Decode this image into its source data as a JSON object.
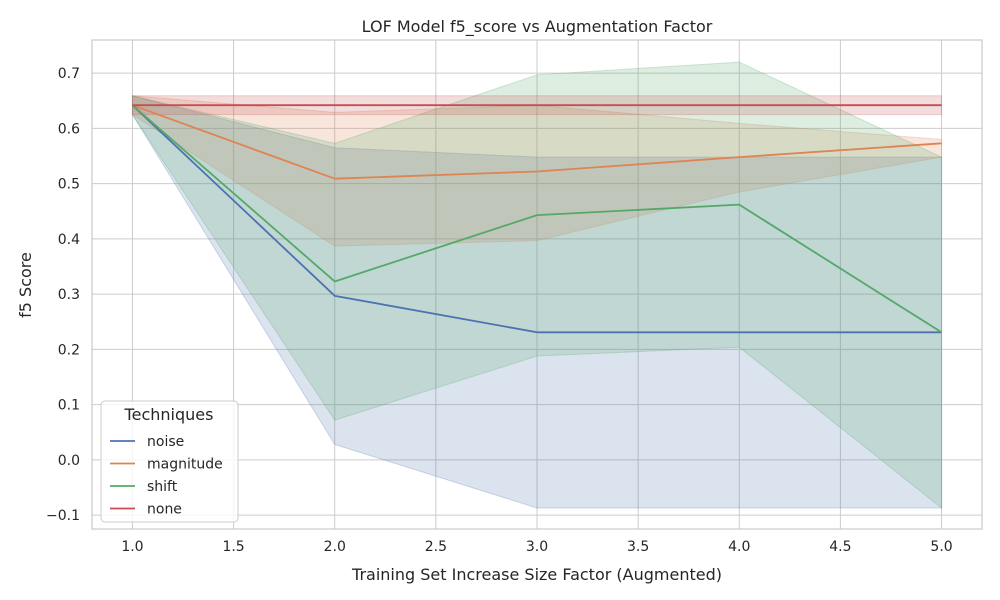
{
  "chart_data": {
    "type": "line",
    "title": "LOF Model f5_score vs Augmentation Factor",
    "xlabel": "Training Set Increase Size Factor (Augmented)",
    "ylabel": "f5 Score",
    "xlim": [
      0.8,
      5.2
    ],
    "ylim": [
      -0.125,
      0.76
    ],
    "xticks": [
      1.0,
      1.5,
      2.0,
      2.5,
      3.0,
      3.5,
      4.0,
      4.5,
      5.0
    ],
    "xtick_labels": [
      "1.0",
      "1.5",
      "2.0",
      "2.5",
      "3.0",
      "3.5",
      "4.0",
      "4.5",
      "5.0"
    ],
    "yticks": [
      -0.1,
      0.0,
      0.1,
      0.2,
      0.3,
      0.4,
      0.5,
      0.6,
      0.7
    ],
    "ytick_labels": [
      "−0.1",
      "0.0",
      "0.1",
      "0.2",
      "0.3",
      "0.4",
      "0.5",
      "0.6",
      "0.7"
    ],
    "grid": true,
    "legend": {
      "title": "Techniques",
      "placement": "lower-left"
    },
    "x": [
      1,
      2,
      3,
      4,
      5
    ],
    "series": [
      {
        "name": "noise",
        "color": "#4c72b0",
        "values": [
          0.642,
          0.297,
          0.231,
          0.231,
          0.231
        ],
        "lower": [
          0.625,
          0.028,
          -0.087,
          -0.087,
          -0.087
        ],
        "upper": [
          0.659,
          0.565,
          0.548,
          0.548,
          0.548
        ]
      },
      {
        "name": "magnitude",
        "color": "#dd8452",
        "values": [
          0.642,
          0.509,
          0.522,
          0.548,
          0.573
        ],
        "lower": [
          0.625,
          0.387,
          0.397,
          0.485,
          0.548
        ],
        "upper": [
          0.659,
          0.629,
          0.642,
          0.609,
          0.58
        ]
      },
      {
        "name": "shift",
        "color": "#55a868",
        "values": [
          0.642,
          0.323,
          0.443,
          0.462,
          0.231
        ],
        "lower": [
          0.625,
          0.072,
          0.188,
          0.204,
          -0.087
        ],
        "upper": [
          0.659,
          0.573,
          0.697,
          0.72,
          0.548
        ]
      },
      {
        "name": "none",
        "color": "#c44e52",
        "values": [
          0.642,
          0.642,
          0.642,
          0.642,
          0.642
        ],
        "lower": [
          0.625,
          0.625,
          0.625,
          0.625,
          0.625
        ],
        "upper": [
          0.659,
          0.659,
          0.659,
          0.659,
          0.659
        ]
      }
    ]
  }
}
